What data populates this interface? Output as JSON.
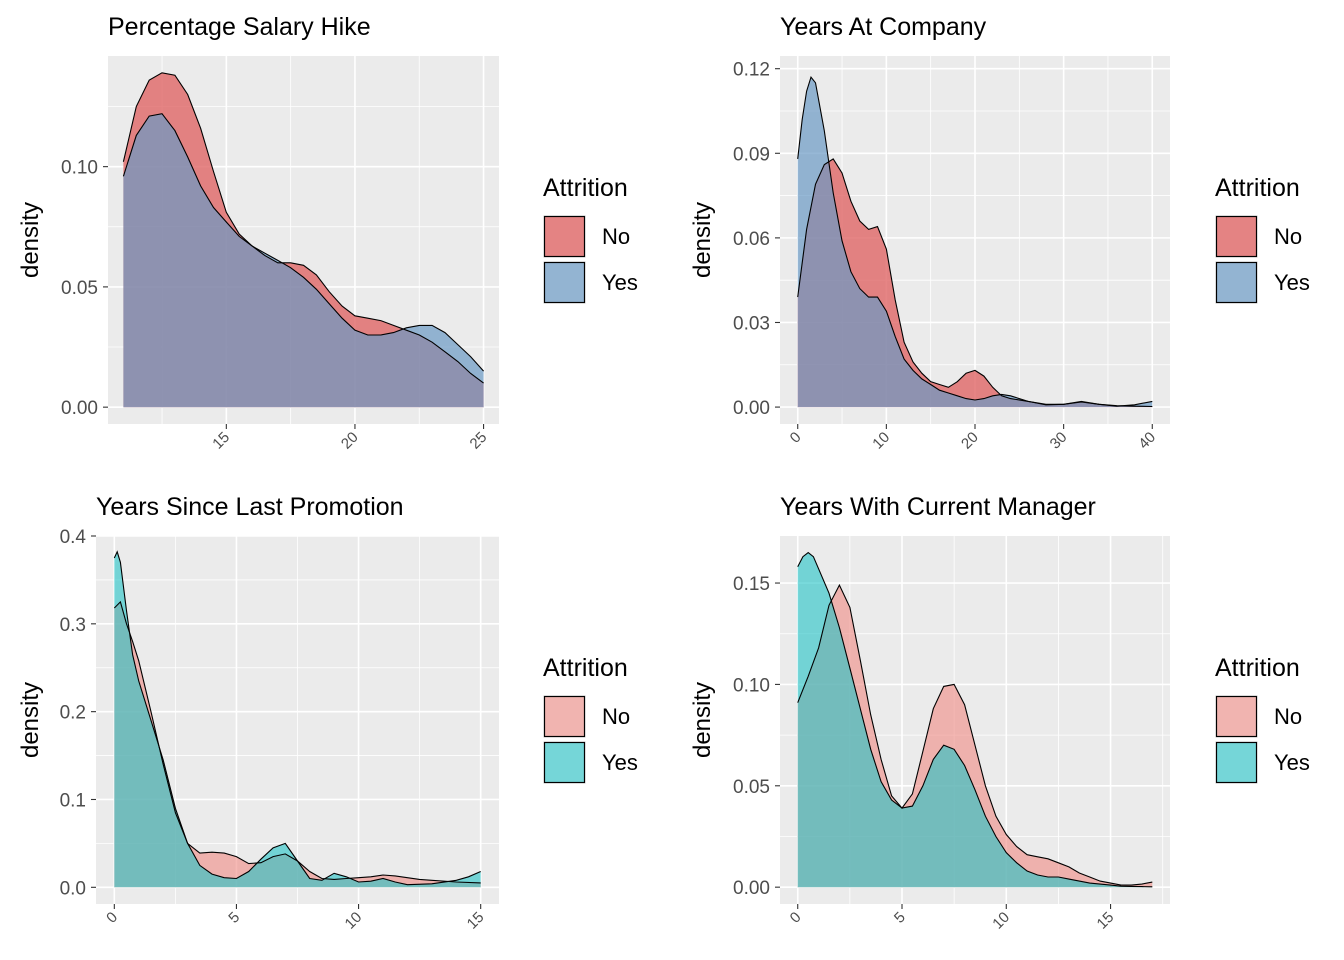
{
  "colors": {
    "panel_bg": "#EBEBEB",
    "grid": "#FFFFFF",
    "text": "#000000",
    "tick_text": "#4D4D4D",
    "no_red": "#E06666",
    "yes_blue": "#6B9AC4",
    "no_pink": "#F08A84",
    "yes_teal": "#22C3C6",
    "outline": "#000000"
  },
  "chart_data": [
    {
      "type": "area",
      "title": "Percentage Salary Hike",
      "xlabel": "",
      "ylabel": "density",
      "xlim": [
        10.4,
        25.6
      ],
      "ylim": [
        -0.007,
        0.146
      ],
      "xticks": [
        15,
        20,
        25
      ],
      "yticks": [
        0.0,
        0.05,
        0.1
      ],
      "ytick_labels": [
        "0.00",
        "0.05",
        "0.10"
      ],
      "legend": {
        "title": "Attrition",
        "placement": "right",
        "entries": [
          "No",
          "Yes"
        ]
      },
      "series": [
        {
          "name": "No",
          "color": "#E06666",
          "opacity": 0.8,
          "x": [
            11,
            11.5,
            12,
            12.5,
            13,
            13.5,
            14,
            14.5,
            15,
            15.5,
            16,
            16.5,
            17,
            17.5,
            18,
            18.5,
            19,
            19.5,
            20,
            20.5,
            21,
            21.5,
            22,
            22.5,
            23,
            23.5,
            24,
            24.5,
            25
          ],
          "y": [
            0.102,
            0.125,
            0.136,
            0.139,
            0.138,
            0.13,
            0.116,
            0.098,
            0.081,
            0.072,
            0.067,
            0.063,
            0.06,
            0.06,
            0.059,
            0.055,
            0.048,
            0.042,
            0.038,
            0.037,
            0.036,
            0.034,
            0.032,
            0.03,
            0.027,
            0.023,
            0.019,
            0.014,
            0.01
          ]
        },
        {
          "name": "Yes",
          "color": "#6B9AC4",
          "opacity": 0.7,
          "x": [
            11,
            11.5,
            12,
            12.5,
            13,
            13.5,
            14,
            14.5,
            15,
            15.5,
            16,
            16.5,
            17,
            17.5,
            18,
            18.5,
            19,
            19.5,
            20,
            20.5,
            21,
            21.5,
            22,
            22.5,
            23,
            23.5,
            24,
            24.5,
            25
          ],
          "y": [
            0.096,
            0.113,
            0.121,
            0.122,
            0.115,
            0.104,
            0.092,
            0.083,
            0.077,
            0.071,
            0.067,
            0.064,
            0.061,
            0.058,
            0.054,
            0.049,
            0.043,
            0.037,
            0.032,
            0.03,
            0.03,
            0.031,
            0.033,
            0.034,
            0.034,
            0.031,
            0.026,
            0.021,
            0.015
          ]
        }
      ]
    },
    {
      "type": "area",
      "title": "Years At Company",
      "xlabel": "",
      "ylabel": "density",
      "xlim": [
        -2,
        42
      ],
      "ylim": [
        -0.006,
        0.1245
      ],
      "xticks": [
        0,
        10,
        20,
        30,
        40
      ],
      "yticks": [
        0.0,
        0.03,
        0.06,
        0.09,
        0.12
      ],
      "ytick_labels": [
        "0.00",
        "0.03",
        "0.06",
        "0.09",
        "0.12"
      ],
      "legend": {
        "title": "Attrition",
        "placement": "right",
        "entries": [
          "No",
          "Yes"
        ]
      },
      "series": [
        {
          "name": "No",
          "color": "#E06666",
          "opacity": 0.8,
          "x": [
            0,
            1,
            2,
            3,
            4,
            5,
            6,
            7,
            8,
            9,
            10,
            11,
            12,
            13,
            14,
            15,
            16,
            17,
            18,
            19,
            20,
            21,
            22,
            23,
            24,
            26,
            28,
            30,
            32,
            34,
            36,
            38,
            40
          ],
          "y": [
            0.039,
            0.063,
            0.079,
            0.086,
            0.088,
            0.083,
            0.073,
            0.066,
            0.063,
            0.064,
            0.056,
            0.038,
            0.023,
            0.016,
            0.012,
            0.009,
            0.008,
            0.007,
            0.009,
            0.012,
            0.013,
            0.011,
            0.007,
            0.004,
            0.003,
            0.002,
            0.001,
            0.001,
            0.002,
            0.001,
            0.0005,
            0.0003,
            0.0002
          ]
        },
        {
          "name": "Yes",
          "color": "#6B9AC4",
          "opacity": 0.7,
          "x": [
            0,
            0.5,
            1,
            1.5,
            2,
            3,
            4,
            5,
            6,
            7,
            8,
            9,
            10,
            11,
            12,
            13,
            14,
            15,
            16,
            17,
            18,
            19,
            20,
            21,
            22,
            23,
            24,
            26,
            28,
            30,
            32,
            34,
            36,
            38,
            40
          ],
          "y": [
            0.088,
            0.102,
            0.112,
            0.117,
            0.115,
            0.098,
            0.076,
            0.059,
            0.048,
            0.042,
            0.039,
            0.039,
            0.034,
            0.025,
            0.017,
            0.013,
            0.01,
            0.008,
            0.006,
            0.005,
            0.004,
            0.003,
            0.0025,
            0.003,
            0.004,
            0.0045,
            0.004,
            0.002,
            0.0008,
            0.001,
            0.0018,
            0.001,
            0.0003,
            0.0008,
            0.002
          ]
        }
      ]
    },
    {
      "type": "area",
      "title": "Years Since Last Promotion",
      "xlabel": "",
      "ylabel": "density",
      "xlim": [
        -0.75,
        15.75
      ],
      "ylim": [
        -0.019,
        0.4
      ],
      "xticks": [
        0,
        5,
        10,
        15
      ],
      "yticks": [
        0.0,
        0.1,
        0.2,
        0.3,
        0.4
      ],
      "ytick_labels": [
        "0.0",
        "0.1",
        "0.2",
        "0.3",
        "0.4"
      ],
      "legend": {
        "title": "Attrition",
        "placement": "right",
        "entries": [
          "No",
          "Yes"
        ]
      },
      "series": [
        {
          "name": "No",
          "color": "#F08A84",
          "opacity": 0.6,
          "x": [
            0,
            0.25,
            0.5,
            0.75,
            1,
            1.5,
            2,
            2.5,
            3,
            3.5,
            4,
            4.5,
            5,
            5.5,
            6,
            6.5,
            7,
            7.5,
            8,
            8.5,
            9,
            9.5,
            10,
            10.5,
            11,
            11.5,
            12,
            12.5,
            13,
            14,
            15
          ],
          "y": [
            0.318,
            0.325,
            0.3,
            0.28,
            0.258,
            0.2,
            0.14,
            0.085,
            0.05,
            0.039,
            0.04,
            0.039,
            0.035,
            0.027,
            0.028,
            0.035,
            0.038,
            0.03,
            0.018,
            0.01,
            0.009,
            0.01,
            0.011,
            0.012,
            0.014,
            0.013,
            0.011,
            0.009,
            0.008,
            0.006,
            0.005
          ]
        },
        {
          "name": "Yes",
          "color": "#22C3C6",
          "opacity": 0.6,
          "x": [
            0,
            0.12,
            0.25,
            0.5,
            0.75,
            1,
            1.5,
            2,
            2.5,
            3,
            3.5,
            4,
            4.5,
            5,
            5.5,
            6,
            6.5,
            7,
            7.5,
            8,
            8.5,
            9,
            9.5,
            10,
            10.5,
            11,
            11.5,
            12,
            13,
            14,
            14.5,
            15
          ],
          "y": [
            0.375,
            0.382,
            0.37,
            0.315,
            0.265,
            0.235,
            0.19,
            0.145,
            0.09,
            0.05,
            0.025,
            0.015,
            0.011,
            0.01,
            0.018,
            0.032,
            0.045,
            0.05,
            0.03,
            0.01,
            0.008,
            0.016,
            0.012,
            0.006,
            0.007,
            0.01,
            0.006,
            0.003,
            0.004,
            0.008,
            0.012,
            0.018
          ]
        }
      ]
    },
    {
      "type": "area",
      "title": "Years With Current Manager",
      "xlabel": "",
      "ylabel": "density",
      "xlim": [
        -0.85,
        17.85
      ],
      "ylim": [
        -0.0083,
        0.1732
      ],
      "xticks": [
        0,
        5,
        10,
        15
      ],
      "yticks": [
        0.0,
        0.05,
        0.1,
        0.15
      ],
      "ytick_labels": [
        "0.00",
        "0.05",
        "0.10",
        "0.15"
      ],
      "legend": {
        "title": "Attrition",
        "placement": "right",
        "entries": [
          "No",
          "Yes"
        ]
      },
      "series": [
        {
          "name": "No",
          "color": "#F08A84",
          "opacity": 0.6,
          "x": [
            0,
            0.5,
            1,
            1.5,
            2,
            2.5,
            3,
            3.5,
            4,
            4.5,
            5,
            5.5,
            6,
            6.5,
            7,
            7.5,
            8,
            8.5,
            9,
            9.5,
            10,
            10.5,
            11,
            11.5,
            12,
            12.5,
            13,
            13.5,
            14,
            14.5,
            15,
            15.5,
            16,
            16.5,
            17
          ],
          "y": [
            0.091,
            0.104,
            0.118,
            0.139,
            0.149,
            0.138,
            0.112,
            0.085,
            0.063,
            0.045,
            0.039,
            0.046,
            0.067,
            0.088,
            0.099,
            0.1,
            0.09,
            0.07,
            0.05,
            0.035,
            0.026,
            0.02,
            0.016,
            0.015,
            0.014,
            0.012,
            0.01,
            0.007,
            0.005,
            0.003,
            0.002,
            0.001,
            0.001,
            0.0015,
            0.0025
          ]
        },
        {
          "name": "Yes",
          "color": "#22C3C6",
          "opacity": 0.6,
          "x": [
            0,
            0.25,
            0.5,
            0.75,
            1,
            1.5,
            2,
            2.5,
            3,
            3.5,
            4,
            4.5,
            5,
            5.5,
            6,
            6.5,
            7,
            7.5,
            8,
            8.5,
            9,
            9.5,
            10,
            10.5,
            11,
            11.5,
            12,
            12.5,
            13,
            13.5,
            14,
            14.5,
            15,
            15.5,
            16,
            16.5,
            17
          ],
          "y": [
            0.158,
            0.163,
            0.165,
            0.163,
            0.157,
            0.145,
            0.128,
            0.108,
            0.088,
            0.068,
            0.052,
            0.043,
            0.039,
            0.04,
            0.05,
            0.063,
            0.07,
            0.068,
            0.06,
            0.048,
            0.035,
            0.025,
            0.017,
            0.012,
            0.008,
            0.006,
            0.005,
            0.005,
            0.004,
            0.003,
            0.002,
            0.0015,
            0.001,
            0.0005,
            0.0004,
            0.0003,
            0.0002
          ]
        }
      ]
    }
  ]
}
